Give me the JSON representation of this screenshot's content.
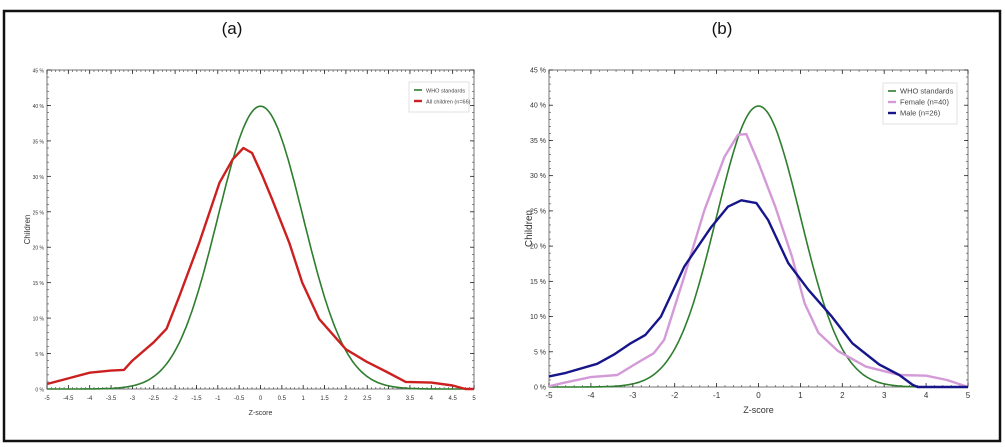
{
  "chart_data": [
    {
      "type": "line",
      "panel_label": "(a)",
      "xlabel": "Z-score",
      "ylabel": "Children",
      "xlim": [
        -5,
        5
      ],
      "ylim": [
        0,
        45
      ],
      "x_ticks": [
        -5,
        -4.5,
        -4,
        -3.5,
        -3,
        -2.5,
        -2,
        -1.5,
        -1,
        -0.5,
        0,
        0.5,
        1,
        1.5,
        2,
        2.5,
        3,
        3.5,
        4,
        4.5,
        5
      ],
      "x_tick_labels": [
        "-5",
        "-4.5",
        "-4",
        "-3.5",
        "-3",
        "-2.5",
        "-2",
        "-1.5",
        "-1",
        "-0.5",
        "0",
        "0.5",
        "1",
        "1.5",
        "2",
        "2.5",
        "3",
        "3.5",
        "4",
        "4.5",
        "5"
      ],
      "y_ticks": [
        0,
        5,
        10,
        15,
        20,
        25,
        30,
        35,
        40,
        45
      ],
      "y_tick_labels": [
        "0 %",
        "5 %",
        "10 %",
        "15 %",
        "20 %",
        "25 %",
        "30 %",
        "35 %",
        "40 %",
        "45 %"
      ],
      "grid": false,
      "legend_position": "top-right",
      "series": [
        {
          "name": "WHO standards",
          "color": "#2f7d2f",
          "kind": "normal_pdf_percent"
        },
        {
          "name": "All children (n=66)",
          "color": "#cc2020",
          "points": [
            [
              -5,
              0.7
            ],
            [
              -4.5,
              1.5
            ],
            [
              -4,
              2.3
            ],
            [
              -3.5,
              2.6
            ],
            [
              -3.2,
              2.7
            ],
            [
              -3,
              4.0
            ],
            [
              -2.5,
              6.6
            ],
            [
              -2.2,
              8.5
            ],
            [
              -1.9,
              13.1
            ],
            [
              -1.43,
              20.7
            ],
            [
              -0.96,
              29.1
            ],
            [
              -0.65,
              32.4
            ],
            [
              -0.4,
              34.0
            ],
            [
              -0.2,
              33.3
            ],
            [
              0.05,
              30.0
            ],
            [
              0.27,
              26.8
            ],
            [
              0.67,
              20.7
            ],
            [
              0.98,
              15.0
            ],
            [
              1.37,
              9.9
            ],
            [
              2,
              5.6
            ],
            [
              2.5,
              3.8
            ],
            [
              2.96,
              2.4
            ],
            [
              3.4,
              1.0
            ],
            [
              4,
              0.9
            ],
            [
              4.5,
              0.5
            ],
            [
              4.8,
              0
            ],
            [
              5,
              0
            ]
          ]
        }
      ]
    },
    {
      "type": "line",
      "panel_label": "(b)",
      "xlabel": "Z-score",
      "ylabel": "Children",
      "xlim": [
        -5,
        5
      ],
      "ylim": [
        0,
        45
      ],
      "x_ticks": [
        -5,
        -4,
        -3,
        -2,
        -1,
        0,
        1,
        2,
        3,
        4,
        5
      ],
      "x_tick_labels": [
        "-5",
        "-4",
        "-3",
        "-2",
        "-1",
        "0",
        "1",
        "2",
        "3",
        "4",
        "5"
      ],
      "y_ticks": [
        0,
        5,
        10,
        15,
        20,
        25,
        30,
        35,
        40,
        45
      ],
      "y_tick_labels": [
        "0 %",
        "5 %",
        "10 %",
        "15 %",
        "20 %",
        "25 %",
        "30 %",
        "35 %",
        "40 %",
        "45 %"
      ],
      "grid": false,
      "legend_position": "top-right",
      "series": [
        {
          "name": "WHO standards",
          "color": "#2f7d2f",
          "kind": "normal_pdf_percent"
        },
        {
          "name": "Female (n=40)",
          "color": "#d49ad8",
          "points": [
            [
              -5,
              0.1
            ],
            [
              -4.65,
              0.6
            ],
            [
              -4,
              1.4
            ],
            [
              -3.37,
              1.7
            ],
            [
              -2.9,
              3.4
            ],
            [
              -2.5,
              4.8
            ],
            [
              -2.25,
              6.7
            ],
            [
              -1.77,
              15.7
            ],
            [
              -1.29,
              25.1
            ],
            [
              -0.81,
              32.7
            ],
            [
              -0.49,
              35.8
            ],
            [
              -0.29,
              35.9
            ],
            [
              0,
              31.8
            ],
            [
              0.4,
              25.6
            ],
            [
              0.8,
              18.5
            ],
            [
              1.1,
              11.9
            ],
            [
              1.43,
              7.7
            ],
            [
              1.9,
              5.1
            ],
            [
              2.56,
              2.9
            ],
            [
              3.36,
              1.7
            ],
            [
              4,
              1.6
            ],
            [
              4.5,
              1.0
            ],
            [
              5,
              0
            ]
          ]
        },
        {
          "name": "Male (n=26)",
          "color": "#16168a",
          "points": [
            [
              -5,
              1.5
            ],
            [
              -4.6,
              2.0
            ],
            [
              -3.85,
              3.3
            ],
            [
              -3.45,
              4.6
            ],
            [
              -3.05,
              6.2
            ],
            [
              -2.7,
              7.4
            ],
            [
              -2.33,
              10.0
            ],
            [
              -1.77,
              17.1
            ],
            [
              -1.13,
              22.7
            ],
            [
              -0.73,
              25.6
            ],
            [
              -0.41,
              26.5
            ],
            [
              -0.05,
              26.1
            ],
            [
              0.23,
              23.7
            ],
            [
              0.71,
              17.6
            ],
            [
              1.19,
              13.8
            ],
            [
              1.75,
              10.0
            ],
            [
              2.24,
              6.2
            ],
            [
              2.88,
              3.2
            ],
            [
              3.36,
              1.7
            ],
            [
              3.68,
              0.3
            ],
            [
              3.8,
              0
            ],
            [
              5,
              0
            ]
          ]
        }
      ]
    }
  ]
}
